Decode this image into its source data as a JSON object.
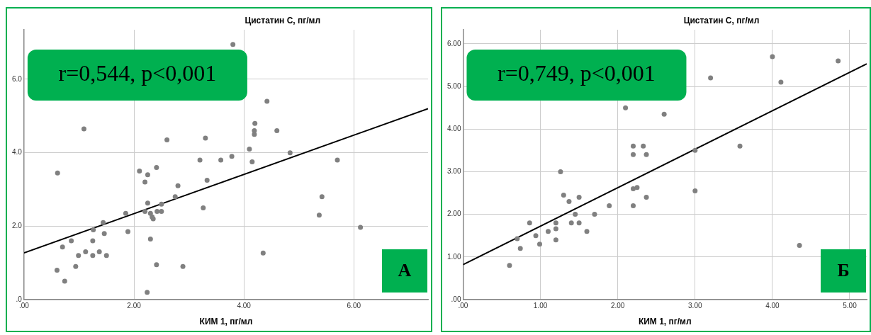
{
  "chart_data": [
    {
      "type": "scatter",
      "ylabel": "Цистатин С, пг/мл",
      "xlabel": "КИМ 1, пг/мл",
      "annotations": [
        "r=0,544, p<0,001",
        "А"
      ],
      "xlim": [
        0,
        7.35
      ],
      "ylim": [
        0,
        7.35
      ],
      "xticks": [
        {
          "value": 0,
          "label": ".00"
        },
        {
          "value": 2,
          "label": "2.00"
        },
        {
          "value": 4,
          "label": "4.00"
        },
        {
          "value": 6,
          "label": "6.00"
        }
      ],
      "yticks": [
        {
          "value": 0,
          "label": ".0"
        },
        {
          "value": 2,
          "label": "2.0"
        },
        {
          "value": 4,
          "label": "4.0"
        },
        {
          "value": 6,
          "label": "6.0"
        }
      ],
      "grid": true,
      "legend": false,
      "marker": "circle",
      "series": [
        {
          "color": "#808080",
          "x": [
            0.61,
            1.09,
            0.6,
            0.74,
            0.7,
            0.86,
            0.94,
            0.99,
            1.12,
            1.25,
            1.25,
            1.26,
            1.37,
            1.44,
            1.46,
            1.5,
            1.85,
            1.89,
            2.1,
            2.2,
            2.25,
            2.41,
            2.25,
            2.2,
            2.3,
            2.33,
            2.35,
            2.42,
            2.5,
            2.5,
            2.3,
            2.41,
            2.24,
            2.6,
            2.75,
            2.8,
            2.89,
            3.2,
            3.3,
            3.33,
            3.26,
            3.58,
            3.78,
            3.8,
            4.42,
            4.2,
            4.19,
            4.19,
            4.1,
            4.15,
            4.6,
            4.84,
            5.7,
            5.42,
            5.37,
            6.12,
            4.35
          ],
          "values": [
            3.45,
            4.65,
            0.8,
            0.5,
            1.43,
            1.6,
            0.9,
            1.2,
            1.3,
            1.2,
            1.6,
            1.9,
            1.3,
            2.1,
            1.8,
            1.2,
            2.35,
            1.85,
            3.5,
            3.2,
            3.4,
            3.6,
            2.63,
            2.4,
            2.35,
            2.25,
            2.2,
            2.4,
            2.4,
            2.6,
            1.65,
            0.95,
            0.2,
            4.35,
            2.8,
            3.1,
            0.9,
            3.8,
            4.4,
            3.25,
            2.5,
            3.8,
            3.9,
            6.95,
            5.4,
            4.8,
            4.6,
            4.5,
            4.1,
            3.75,
            4.6,
            4.0,
            3.8,
            2.8,
            2.3,
            1.97,
            1.27
          ]
        },
        {
          "type": "line",
          "color": "#000000",
          "marker": "none",
          "x": [
            0,
            7.35
          ],
          "values": [
            1.27,
            5.2
          ]
        }
      ]
    },
    {
      "type": "scatter",
      "ylabel": "Цистатин С, пг/мл",
      "xlabel": "КИМ 1, пг/мл",
      "annotations": [
        "r=0,749, p<0,001",
        "Б"
      ],
      "xlim": [
        0,
        5.22
      ],
      "ylim": [
        0,
        6.33
      ],
      "xticks": [
        {
          "value": 0,
          "label": ".00"
        },
        {
          "value": 1,
          "label": "1.00"
        },
        {
          "value": 2,
          "label": "2.00"
        },
        {
          "value": 3,
          "label": "3.00"
        },
        {
          "value": 4,
          "label": "4.00"
        },
        {
          "value": 5,
          "label": "5.00"
        }
      ],
      "yticks": [
        {
          "value": 0,
          "label": ".00"
        },
        {
          "value": 1,
          "label": "1.00"
        },
        {
          "value": 2,
          "label": "2.00"
        },
        {
          "value": 3,
          "label": "3.00"
        },
        {
          "value": 4,
          "label": "4.00"
        },
        {
          "value": 5,
          "label": "5.00"
        },
        {
          "value": 6,
          "label": "6.00"
        }
      ],
      "grid": true,
      "legend": false,
      "marker": "circle",
      "series": [
        {
          "color": "#808080",
          "x": [
            0.6,
            0.7,
            0.74,
            0.86,
            0.94,
            0.99,
            1.1,
            1.2,
            1.2,
            1.2,
            1.26,
            1.3,
            1.37,
            1.4,
            1.45,
            1.5,
            1.5,
            1.6,
            1.7,
            1.89,
            2.1,
            2.2,
            2.2,
            2.33,
            2.37,
            2.2,
            2.25,
            2.2,
            2.37,
            2.6,
            3.2,
            3.0,
            3.0,
            3.58,
            4.0,
            4.11,
            4.85,
            4.35
          ],
          "values": [
            0.8,
            1.43,
            1.2,
            1.8,
            1.5,
            1.3,
            1.6,
            1.8,
            1.66,
            1.4,
            3.0,
            2.45,
            2.3,
            1.8,
            2.0,
            2.4,
            1.8,
            1.6,
            2.0,
            2.2,
            4.5,
            3.6,
            3.4,
            3.6,
            3.4,
            2.6,
            2.63,
            2.2,
            2.4,
            4.35,
            5.2,
            3.5,
            2.55,
            3.6,
            5.7,
            5.1,
            5.6,
            1.27
          ]
        },
        {
          "type": "line",
          "color": "#000000",
          "marker": "none",
          "x": [
            0,
            5.22
          ],
          "values": [
            0.82,
            5.53
          ]
        }
      ]
    }
  ]
}
